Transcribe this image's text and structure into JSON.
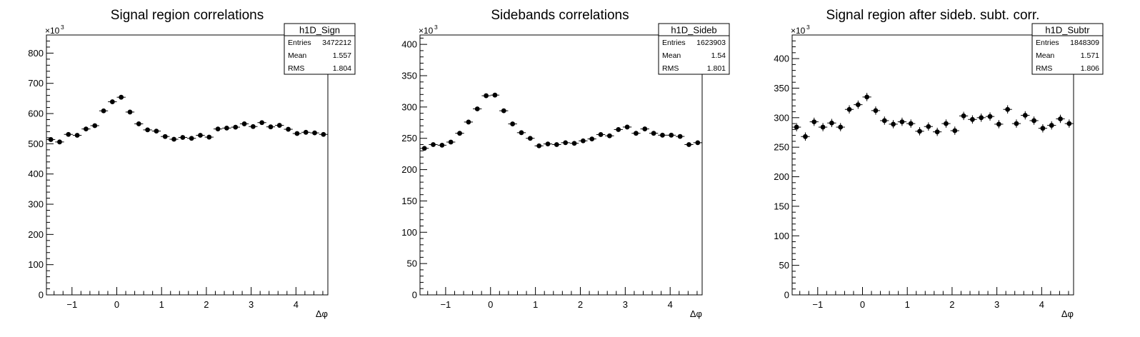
{
  "chart_data": [
    {
      "type": "scatter",
      "title": "Signal region correlations",
      "xlabel": "Δφ",
      "ylabel": "",
      "y_multiplier_label": "×10",
      "y_multiplier_exp": "3",
      "xlim": [
        -1.5708,
        4.7124
      ],
      "ylim": [
        0,
        860
      ],
      "xticks": [
        -1,
        0,
        1,
        2,
        3,
        4
      ],
      "yticks": [
        0,
        100,
        200,
        300,
        400,
        500,
        600,
        700,
        800
      ],
      "grid": false,
      "legend": "none",
      "stats": {
        "name": "h1D_Sign",
        "rows": [
          [
            "Entries",
            "3472212"
          ],
          [
            "Mean",
            "1.557"
          ],
          [
            "RMS",
            "1.804"
          ]
        ]
      },
      "marker_color": "#000000",
      "y": [
        514,
        506,
        531,
        528,
        549,
        560,
        609,
        639,
        654,
        605,
        566,
        546,
        542,
        524,
        515,
        521,
        518,
        528,
        522,
        549,
        552,
        555,
        566,
        557,
        570,
        556,
        561,
        548,
        534,
        538,
        536,
        531
      ],
      "yerr": [
        4,
        4,
        4,
        4,
        4,
        4,
        4,
        4,
        4,
        4,
        4,
        4,
        4,
        4,
        4,
        4,
        4,
        4,
        4,
        4,
        4,
        4,
        4,
        4,
        4,
        4,
        4,
        4,
        4,
        4,
        4,
        4
      ]
    },
    {
      "type": "scatter",
      "title": "Sidebands correlations",
      "xlabel": "Δφ",
      "ylabel": "",
      "y_multiplier_label": "×10",
      "y_multiplier_exp": "3",
      "xlim": [
        -1.5708,
        4.7124
      ],
      "ylim": [
        0,
        415
      ],
      "xticks": [
        -1,
        0,
        1,
        2,
        3,
        4
      ],
      "yticks": [
        0,
        50,
        100,
        150,
        200,
        250,
        300,
        350,
        400
      ],
      "grid": false,
      "legend": "none",
      "stats": {
        "name": "h1D_Sideb",
        "rows": [
          [
            "Entries",
            "1623903"
          ],
          [
            "Mean",
            "1.54"
          ],
          [
            "RMS",
            "1.801"
          ]
        ]
      },
      "marker_color": "#000000",
      "y": [
        234,
        240,
        239,
        244,
        258,
        276,
        297,
        318,
        319,
        294,
        273,
        259,
        250,
        238,
        241,
        240,
        243,
        242,
        246,
        249,
        256,
        254,
        264,
        268,
        258,
        265,
        258,
        255,
        255,
        253,
        240,
        243
      ],
      "yerr": [
        3,
        3,
        3,
        3,
        3,
        3,
        3,
        3,
        3,
        3,
        3,
        3,
        3,
        3,
        3,
        3,
        3,
        3,
        3,
        3,
        3,
        3,
        3,
        3,
        3,
        3,
        3,
        3,
        3,
        3,
        3,
        3
      ]
    },
    {
      "type": "scatter",
      "title": "Signal region after sideb. subt. corr.",
      "xlabel": "Δφ",
      "ylabel": "",
      "y_multiplier_label": "×10",
      "y_multiplier_exp": "3",
      "xlim": [
        -1.5708,
        4.7124
      ],
      "ylim": [
        0,
        440
      ],
      "xticks": [
        -1,
        0,
        1,
        2,
        3,
        4
      ],
      "yticks": [
        0,
        50,
        100,
        150,
        200,
        250,
        300,
        350,
        400
      ],
      "grid": false,
      "legend": "none",
      "stats": {
        "name": "h1D_Subtr",
        "rows": [
          [
            "Entries",
            "1848309"
          ],
          [
            "Mean",
            "1.571"
          ],
          [
            "RMS",
            "1.806"
          ]
        ]
      },
      "marker_color": "#000000",
      "y": [
        284,
        268,
        293,
        284,
        291,
        284,
        314,
        322,
        335,
        312,
        295,
        289,
        293,
        290,
        277,
        285,
        276,
        290,
        278,
        303,
        297,
        300,
        302,
        289,
        314,
        290,
        304,
        295,
        282,
        287,
        298,
        290
      ],
      "yerr": [
        7,
        7,
        7,
        7,
        7,
        7,
        7,
        7,
        7,
        7,
        7,
        7,
        7,
        7,
        7,
        7,
        7,
        7,
        7,
        7,
        7,
        7,
        7,
        7,
        7,
        7,
        7,
        7,
        7,
        7,
        7,
        7
      ]
    }
  ]
}
